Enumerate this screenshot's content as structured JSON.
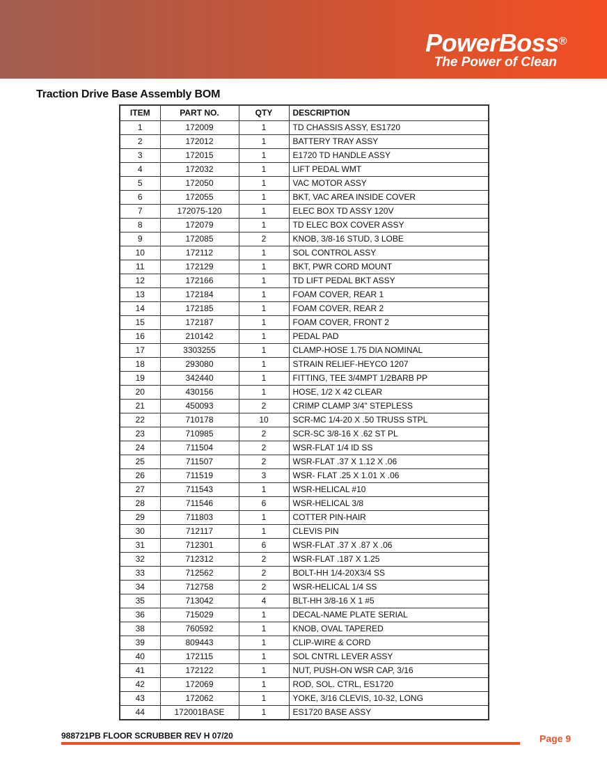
{
  "header": {
    "brand": "PowerBoss",
    "registered": "®",
    "tagline": "The Power of Clean",
    "colors": {
      "banner_start": "#a35f51",
      "banner_end": "#f24e22"
    }
  },
  "title": "Traction Drive Base Assembly BOM",
  "table": {
    "columns": [
      "ITEM",
      "PART NO.",
      "QTY",
      "DESCRIPTION"
    ],
    "rows": [
      [
        "1",
        "172009",
        "1",
        "TD CHASSIS ASSY, ES1720"
      ],
      [
        "2",
        "172012",
        "1",
        "BATTERY TRAY ASSY"
      ],
      [
        "3",
        "172015",
        "1",
        "E1720 TD HANDLE ASSY"
      ],
      [
        "4",
        "172032",
        "1",
        "LIFT PEDAL WMT"
      ],
      [
        "5",
        "172050",
        "1",
        "VAC MOTOR ASSY"
      ],
      [
        "6",
        "172055",
        "1",
        "BKT, VAC AREA INSIDE COVER"
      ],
      [
        "7",
        "172075-120",
        "1",
        "ELEC BOX TD ASSY 120V"
      ],
      [
        "8",
        "172079",
        "1",
        "TD ELEC BOX COVER ASSY"
      ],
      [
        "9",
        "172085",
        "2",
        "KNOB, 3/8-16 STUD, 3 LOBE"
      ],
      [
        "10",
        "172112",
        "1",
        "SOL CONTROL ASSY"
      ],
      [
        "11",
        "172129",
        "1",
        "BKT, PWR CORD MOUNT"
      ],
      [
        "12",
        "172166",
        "1",
        "TD LIFT PEDAL BKT ASSY"
      ],
      [
        "13",
        "172184",
        "1",
        "FOAM COVER, REAR 1"
      ],
      [
        "14",
        "172185",
        "1",
        "FOAM COVER, REAR 2"
      ],
      [
        "15",
        "172187",
        "1",
        "FOAM COVER, FRONT 2"
      ],
      [
        "16",
        "210142",
        "1",
        "PEDAL PAD"
      ],
      [
        "17",
        "3303255",
        "1",
        "CLAMP-HOSE 1.75 DIA NOMINAL"
      ],
      [
        "18",
        "293080",
        "1",
        "STRAIN RELIEF-HEYCO 1207"
      ],
      [
        "19",
        "342440",
        "1",
        "FITTING, TEE 3/4MPT 1/2BARB PP"
      ],
      [
        "20",
        "430156",
        "1",
        "HOSE, 1/2 X 42 CLEAR"
      ],
      [
        "21",
        "450093",
        "2",
        "CRIMP CLAMP 3/4\" STEPLESS"
      ],
      [
        "22",
        "710178",
        "10",
        "SCR-MC 1/4-20 X .50 TRUSS STPL"
      ],
      [
        "23",
        "710985",
        "2",
        "SCR-SC 3/8-16 X .62 ST PL"
      ],
      [
        "24",
        "711504",
        "2",
        "WSR-FLAT 1/4 ID SS"
      ],
      [
        "25",
        "711507",
        "2",
        "WSR-FLAT .37 X 1.12 X .06"
      ],
      [
        "26",
        "711519",
        "3",
        "WSR- FLAT .25 X 1.01 X .06"
      ],
      [
        "27",
        "711543",
        "1",
        "WSR-HELICAL #10"
      ],
      [
        "28",
        "711546",
        "6",
        "WSR-HELICAL 3/8"
      ],
      [
        "29",
        "711803",
        "1",
        "COTTER PIN-HAIR"
      ],
      [
        "30",
        "712117",
        "1",
        "CLEVIS PIN"
      ],
      [
        "31",
        "712301",
        "6",
        "WSR-FLAT .37 X .87 X .06"
      ],
      [
        "32",
        "712312",
        "2",
        "WSR-FLAT .187 X 1.25"
      ],
      [
        "33",
        "712562",
        "2",
        "BOLT-HH 1/4-20X3/4 SS"
      ],
      [
        "34",
        "712758",
        "2",
        "WSR-HELICAL 1/4 SS"
      ],
      [
        "35",
        "713042",
        "4",
        "BLT-HH 3/8-16 X 1 #5"
      ],
      [
        "36",
        "715029",
        "1",
        "DECAL-NAME PLATE SERIAL"
      ],
      [
        "38",
        "760592",
        "1",
        "KNOB, OVAL TAPERED"
      ],
      [
        "39",
        "809443",
        "1",
        "CLIP-WIRE & CORD"
      ],
      [
        "40",
        "172115",
        "1",
        "SOL CNTRL LEVER ASSY"
      ],
      [
        "41",
        "172122",
        "1",
        "NUT, PUSH-ON WSR CAP, 3/16"
      ],
      [
        "42",
        "172069",
        "1",
        "ROD, SOL. CTRL, ES1720"
      ],
      [
        "43",
        "172062",
        "1",
        "YOKE, 3/16 CLEVIS, 10-32,  LONG"
      ],
      [
        "44",
        "172001BASE",
        "1",
        "ES1720 BASE ASSY"
      ]
    ]
  },
  "footer": {
    "doc": "988721PB  FLOOR SCRUBBER REV H 07/20",
    "page": "Page  9",
    "accent": "#e8532a"
  }
}
